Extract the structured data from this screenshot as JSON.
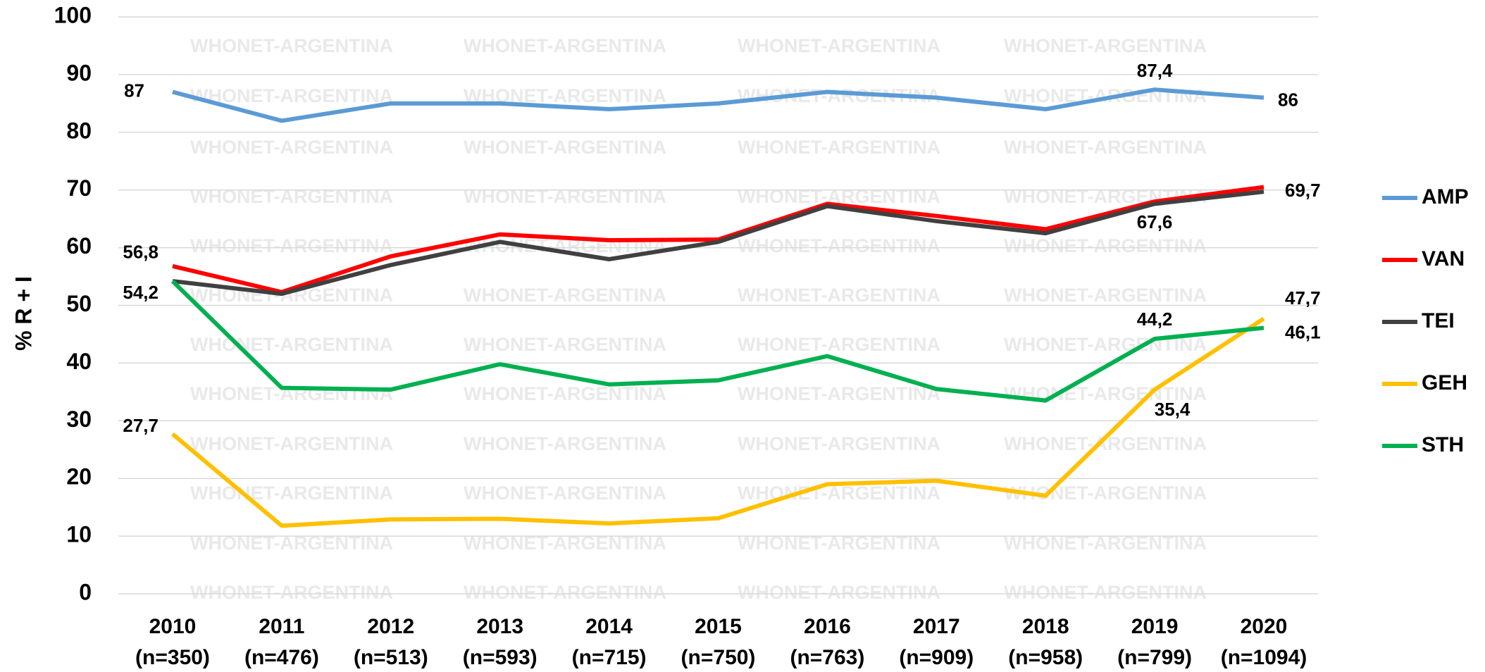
{
  "chart_data": {
    "type": "line",
    "y_label": "% R + I",
    "watermark": "WHONET-ARGENTINA",
    "categories": [
      "2010",
      "2011",
      "2012",
      "2013",
      "2014",
      "2015",
      "2016",
      "2017",
      "2018",
      "2019",
      "2020"
    ],
    "n_labels": [
      "(n=350)",
      "(n=476)",
      "(n=513)",
      "(n=593)",
      "(n=715)",
      "(n=750)",
      "(n=763)",
      "(n=909)",
      "(n=958)",
      "(n=799)",
      "(n=1094)"
    ],
    "ylim": [
      0,
      100
    ],
    "yticks": [
      0,
      10,
      20,
      30,
      40,
      50,
      60,
      70,
      80,
      90,
      100
    ],
    "grid": true,
    "legend": "right",
    "series": [
      {
        "name": "AMP",
        "color": "#5b9bd5",
        "values": [
          87,
          82,
          85,
          85,
          84,
          85,
          87,
          86,
          84,
          87.4,
          86
        ],
        "value_labels": [
          "87",
          null,
          null,
          null,
          null,
          null,
          null,
          null,
          null,
          "87,4",
          "86"
        ]
      },
      {
        "name": "VAN",
        "color": "#ff0000",
        "values": [
          56.8,
          52.3,
          58.5,
          62.3,
          61.3,
          61.4,
          67.6,
          65.5,
          63.2,
          68,
          70.5
        ],
        "value_labels": [
          "56,8",
          null,
          null,
          null,
          null,
          null,
          null,
          null,
          null,
          null,
          null
        ]
      },
      {
        "name": "TEI",
        "color": "#404040",
        "values": [
          54.2,
          52,
          57,
          61,
          58,
          61,
          67.2,
          64.6,
          62.5,
          67.6,
          69.7
        ],
        "value_labels": [
          "54,2",
          null,
          null,
          null,
          null,
          null,
          null,
          null,
          null,
          "67,6",
          "69,7"
        ]
      },
      {
        "name": "GEH",
        "color": "#ffc000",
        "values": [
          27.7,
          11.8,
          12.9,
          13,
          12.2,
          13.1,
          19,
          19.6,
          17,
          35.4,
          47.7
        ],
        "value_labels": [
          "27,7",
          null,
          null,
          null,
          null,
          null,
          null,
          null,
          null,
          "35,4",
          "47,7"
        ]
      },
      {
        "name": "STH",
        "color": "#00b050",
        "values": [
          54.2,
          35.7,
          35.4,
          39.8,
          36.3,
          37,
          41.2,
          35.5,
          33.5,
          44.2,
          46.1
        ],
        "value_labels": [
          null,
          null,
          null,
          null,
          null,
          null,
          null,
          null,
          null,
          "44,2",
          "46,1"
        ]
      }
    ]
  }
}
